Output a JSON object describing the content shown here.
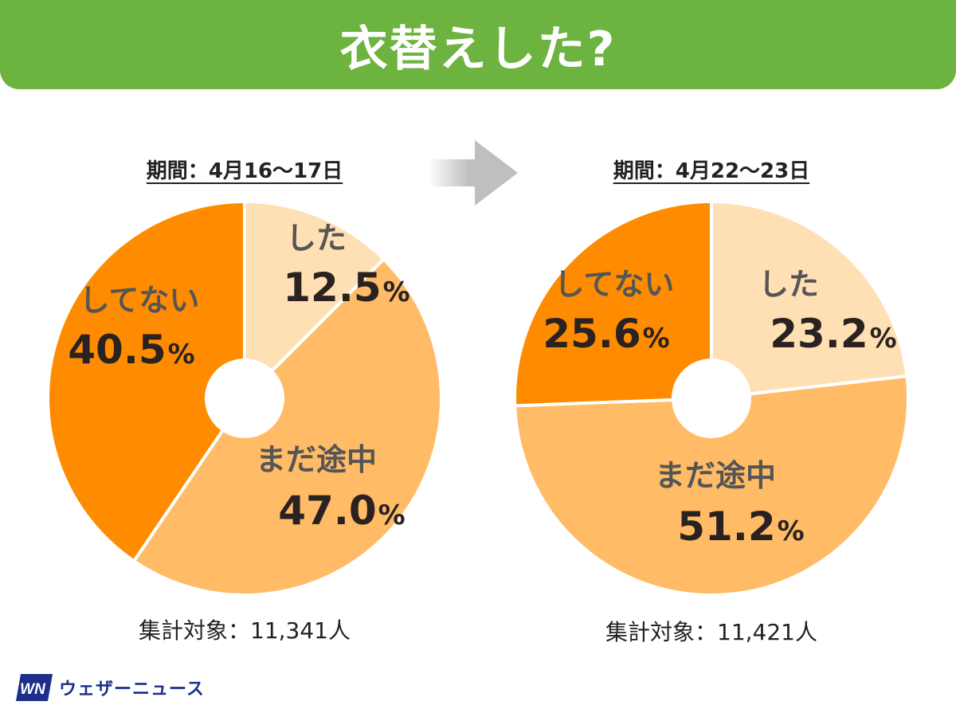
{
  "header": {
    "title": "衣替えした?"
  },
  "arrow_icon": "right-arrow-icon",
  "colors": {
    "header_bg": "#6db33f",
    "did": "#ffdfb4",
    "in_progress": "#ffbb66",
    "not_yet": "#ff8c00"
  },
  "chart_data": [
    {
      "type": "pie",
      "title": "期間：4月16〜17日",
      "slices": [
        {
          "label": "した",
          "value": 12.5,
          "value_text": "12.5",
          "unit": "%",
          "color": "#ffdfb4"
        },
        {
          "label": "まだ途中",
          "value": 47.0,
          "value_text": "47.0",
          "unit": "%",
          "color": "#ffbb66"
        },
        {
          "label": "してない",
          "value": 40.5,
          "value_text": "40.5",
          "unit": "%",
          "color": "#ff8c00"
        }
      ],
      "total": "集計対象：11,341人"
    },
    {
      "type": "pie",
      "title": "期間：4月22〜23日",
      "slices": [
        {
          "label": "した",
          "value": 23.2,
          "value_text": "23.2",
          "unit": "%",
          "color": "#ffdfb4"
        },
        {
          "label": "まだ途中",
          "value": 51.2,
          "value_text": "51.2",
          "unit": "%",
          "color": "#ffbb66"
        },
        {
          "label": "してない",
          "value": 25.6,
          "value_text": "25.6",
          "unit": "%",
          "color": "#ff8c00"
        }
      ],
      "total": "集計対象：11,421人"
    }
  ],
  "logo": {
    "mark": "WN",
    "name": "ウェザーニュース"
  }
}
